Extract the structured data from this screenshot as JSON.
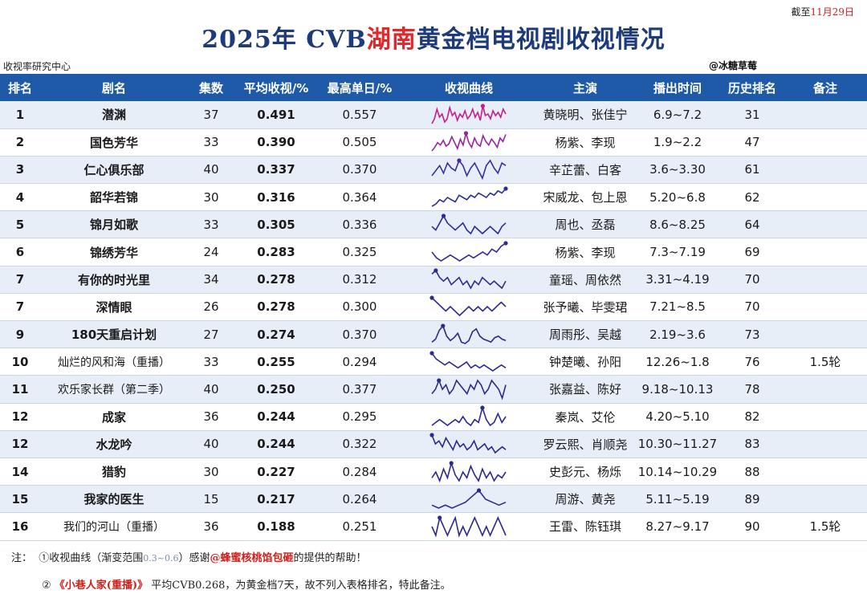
{
  "header": {
    "date_prefix": "截至",
    "date_value": "11月29日",
    "title_pre": "2025年 CVB",
    "title_highlight": "湖南",
    "title_post": "黄金档电视剧收视情况",
    "source_left": "收视率研究中心",
    "source_right": "@冰糖草莓"
  },
  "table": {
    "columns": [
      "排名",
      "剧名",
      "集数",
      "平均收视/%",
      "最高单日/%",
      "收视曲线",
      "主演",
      "播出时间",
      "历史排名",
      "备注"
    ],
    "rows": [
      {
        "rank": "1",
        "name": "潜渊",
        "eps": "37",
        "avg": "0.491",
        "peak": "0.557",
        "cast": "黄晓明、张佳宁",
        "period": "6.9~7.2",
        "hist": "31",
        "note": "",
        "curve": [
          0.44,
          0.47,
          0.53,
          0.48,
          0.5,
          0.45,
          0.47,
          0.54,
          0.49,
          0.51,
          0.46,
          0.5,
          0.48,
          0.52,
          0.47,
          0.49,
          0.53,
          0.48,
          0.51,
          0.46,
          0.55,
          0.49,
          0.5,
          0.47,
          0.52,
          0.49,
          0.51,
          0.48,
          0.53,
          0.5
        ],
        "curve_color": "#c41f8e"
      },
      {
        "rank": "2",
        "name": "国色芳华",
        "eps": "33",
        "avg": "0.390",
        "peak": "0.505",
        "cast": "杨紫、李现",
        "period": "1.9~2.2",
        "hist": "47",
        "note": "",
        "curve": [
          0.33,
          0.36,
          0.4,
          0.38,
          0.42,
          0.37,
          0.39,
          0.45,
          0.4,
          0.35,
          0.43,
          0.38,
          0.48,
          0.4,
          0.36,
          0.44,
          0.39,
          0.37,
          0.46,
          0.41,
          0.38,
          0.43,
          0.4,
          0.36,
          0.44,
          0.41,
          0.47
        ],
        "curve_color": "#9a23a3"
      },
      {
        "rank": "3",
        "name": "仁心俱乐部",
        "eps": "40",
        "avg": "0.337",
        "peak": "0.370",
        "cast": "辛芷蕾、白客",
        "period": "3.6~3.30",
        "hist": "61",
        "note": "",
        "curve": [
          0.31,
          0.33,
          0.35,
          0.32,
          0.36,
          0.34,
          0.33,
          0.37,
          0.35,
          0.31,
          0.34,
          0.36,
          0.33,
          0.3,
          0.35,
          0.37,
          0.34,
          0.32,
          0.36,
          0.35
        ],
        "curve_color": "#3a2fa0"
      },
      {
        "rank": "4",
        "name": "韶华若锦",
        "eps": "30",
        "avg": "0.316",
        "peak": "0.364",
        "cast": "宋威龙、包上恩",
        "period": "5.20~6.8",
        "hist": "62",
        "note": "",
        "curve": [
          0.28,
          0.29,
          0.31,
          0.3,
          0.32,
          0.31,
          0.3,
          0.33,
          0.32,
          0.31,
          0.33,
          0.32,
          0.34,
          0.33,
          0.32,
          0.34,
          0.33,
          0.35,
          0.34,
          0.36
        ],
        "curve_color": "#2a2f9a"
      },
      {
        "rank": "5",
        "name": "锦月如歌",
        "eps": "33",
        "avg": "0.305",
        "peak": "0.336",
        "cast": "周也、丞磊",
        "period": "8.6~8.25",
        "hist": "64",
        "note": "",
        "curve": [
          0.31,
          0.3,
          0.32,
          0.34,
          0.32,
          0.31,
          0.3,
          0.31,
          0.32,
          0.3,
          0.29,
          0.31,
          0.3,
          0.29,
          0.3,
          0.31,
          0.3,
          0.29,
          0.31,
          0.32
        ],
        "curve_color": "#2d2a94"
      },
      {
        "rank": "6",
        "name": "锦绣芳华",
        "eps": "24",
        "avg": "0.283",
        "peak": "0.325",
        "cast": "杨紫、李现",
        "period": "7.3~7.19",
        "hist": "69",
        "note": "",
        "curve": [
          0.29,
          0.27,
          0.26,
          0.27,
          0.28,
          0.27,
          0.26,
          0.27,
          0.28,
          0.27,
          0.28,
          0.29,
          0.28,
          0.3,
          0.29,
          0.31,
          0.32
        ],
        "curve_color": "#332a96"
      },
      {
        "rank": "7",
        "name": "有你的时光里",
        "eps": "34",
        "avg": "0.278",
        "peak": "0.312",
        "cast": "童瑶、周依然",
        "period": "3.31~4.19",
        "hist": "70",
        "note": "",
        "curve": [
          0.3,
          0.31,
          0.29,
          0.28,
          0.29,
          0.27,
          0.28,
          0.29,
          0.27,
          0.28,
          0.26,
          0.28,
          0.27,
          0.29,
          0.28,
          0.27,
          0.28,
          0.27,
          0.26,
          0.28
        ],
        "curve_color": "#2f2a90"
      },
      {
        "rank": "7",
        "name": "深情眼",
        "eps": "26",
        "avg": "0.278",
        "peak": "0.300",
        "cast": "张予曦、毕雯珺",
        "period": "7.21~8.5",
        "hist": "70",
        "note": "",
        "curve": [
          0.3,
          0.29,
          0.28,
          0.27,
          0.28,
          0.27,
          0.26,
          0.27,
          0.28,
          0.27,
          0.28,
          0.27,
          0.28,
          0.27,
          0.28,
          0.29,
          0.28
        ],
        "curve_color": "#302a92"
      },
      {
        "rank": "9",
        "name": "180天重启计划",
        "eps": "27",
        "avg": "0.274",
        "peak": "0.370",
        "cast": "周雨彤、吴越",
        "period": "2.19~3.6",
        "hist": "73",
        "note": "",
        "curve": [
          0.26,
          0.28,
          0.34,
          0.37,
          0.3,
          0.27,
          0.29,
          0.32,
          0.26,
          0.25,
          0.27,
          0.33,
          0.35,
          0.3,
          0.28,
          0.27,
          0.26,
          0.29,
          0.3,
          0.28,
          0.27
        ],
        "curve_color": "#2b2a8e"
      },
      {
        "rank": "10",
        "name": "灿烂的风和海（重播）",
        "eps": "33",
        "avg": "0.255",
        "peak": "0.294",
        "cast": "钟楚曦、孙阳",
        "period": "12.26~1.8",
        "hist": "76",
        "note": "1.5轮",
        "curve": [
          0.29,
          0.27,
          0.26,
          0.25,
          0.26,
          0.25,
          0.24,
          0.25,
          0.26,
          0.24,
          0.25,
          0.24,
          0.25,
          0.24,
          0.23,
          0.24,
          0.25,
          0.24
        ],
        "curve_color": "#2e2a8f"
      },
      {
        "rank": "11",
        "name": "欢乐家长群（第二季）",
        "eps": "40",
        "avg": "0.250",
        "peak": "0.377",
        "cast": "张嘉益、陈好",
        "period": "9.18~10.13",
        "hist": "78",
        "note": "",
        "curve": [
          0.24,
          0.25,
          0.27,
          0.25,
          0.26,
          0.24,
          0.25,
          0.27,
          0.26,
          0.25,
          0.24,
          0.26,
          0.25,
          0.27,
          0.26,
          0.24,
          0.25,
          0.27,
          0.26,
          0.25,
          0.23,
          0.26
        ],
        "curve_color": "#2b2a91"
      },
      {
        "rank": "12",
        "name": "成家",
        "eps": "36",
        "avg": "0.244",
        "peak": "0.295",
        "cast": "秦岚、艾伦",
        "period": "4.20~5.10",
        "hist": "82",
        "note": "",
        "curve": [
          0.23,
          0.24,
          0.25,
          0.24,
          0.23,
          0.24,
          0.25,
          0.24,
          0.26,
          0.24,
          0.23,
          0.25,
          0.24,
          0.29,
          0.25,
          0.23,
          0.24,
          0.27,
          0.24,
          0.26
        ],
        "curve_color": "#2c2a8d"
      },
      {
        "rank": "12",
        "name": "水龙吟",
        "eps": "40",
        "avg": "0.244",
        "peak": "0.322",
        "cast": "罗云熙、肖顺尧",
        "period": "10.30~11.27",
        "hist": "83",
        "note": "",
        "curve": [
          0.28,
          0.25,
          0.26,
          0.24,
          0.27,
          0.25,
          0.23,
          0.26,
          0.24,
          0.25,
          0.23,
          0.24,
          0.26,
          0.23,
          0.24,
          0.25,
          0.23,
          0.24,
          0.22,
          0.23,
          0.24,
          0.23
        ],
        "curve_color": "#2a2a8b"
      },
      {
        "rank": "14",
        "name": "猎豹",
        "eps": "30",
        "avg": "0.227",
        "peak": "0.284",
        "cast": "史彭元、杨烁",
        "period": "10.14~10.29",
        "hist": "88",
        "note": "",
        "curve": [
          0.22,
          0.24,
          0.21,
          0.25,
          0.22,
          0.27,
          0.23,
          0.21,
          0.24,
          0.22,
          0.26,
          0.23,
          0.21,
          0.25,
          0.22,
          0.24,
          0.21,
          0.23,
          0.22,
          0.24
        ],
        "curve_color": "#2b2a8c"
      },
      {
        "rank": "15",
        "name": "我家的医生",
        "eps": "15",
        "avg": "0.217",
        "peak": "0.264",
        "cast": "周游、黄尧",
        "period": "5.11~5.19",
        "hist": "89",
        "note": "",
        "curve": [
          0.21,
          0.2,
          0.21,
          0.2,
          0.21,
          0.22,
          0.24,
          0.26,
          0.23,
          0.22,
          0.21,
          0.22
        ],
        "curve_color": "#2e2a8e"
      },
      {
        "rank": "16",
        "name": "我们的河山（重播）",
        "eps": "36",
        "avg": "0.188",
        "peak": "0.251",
        "cast": "王雷、陈钰琪",
        "period": "8.27~9.17",
        "hist": "90",
        "note": "1.5轮",
        "curve": [
          0.19,
          0.18,
          0.2,
          0.19,
          0.18,
          0.19,
          0.2,
          0.18,
          0.19,
          0.18,
          0.19,
          0.2,
          0.19,
          0.18,
          0.19,
          0.18,
          0.19,
          0.2,
          0.19,
          0.18
        ],
        "curve_color": "#2d2a8f"
      }
    ]
  },
  "footer": {
    "prefix": "注：",
    "line1_a": "①收视曲线（渐变范围",
    "line1_range": "0.3~0.6",
    "line1_b": "）感谢",
    "line1_credit": "@蜂蜜核桃馅包砸",
    "line1_c": "的提供的帮助！",
    "line2_a": "②",
    "line2_title": "《小巷人家(重播)》",
    "line2_b": "平均CVB0.268，为黄金档7天",
    "line2_c": "，故不列入表格排名，特此备注。"
  },
  "colors": {
    "header_bg": "#1e5aa8",
    "title": "#1d3a7a",
    "highlight": "#e3262a",
    "row_odd": "#e8eef8"
  }
}
